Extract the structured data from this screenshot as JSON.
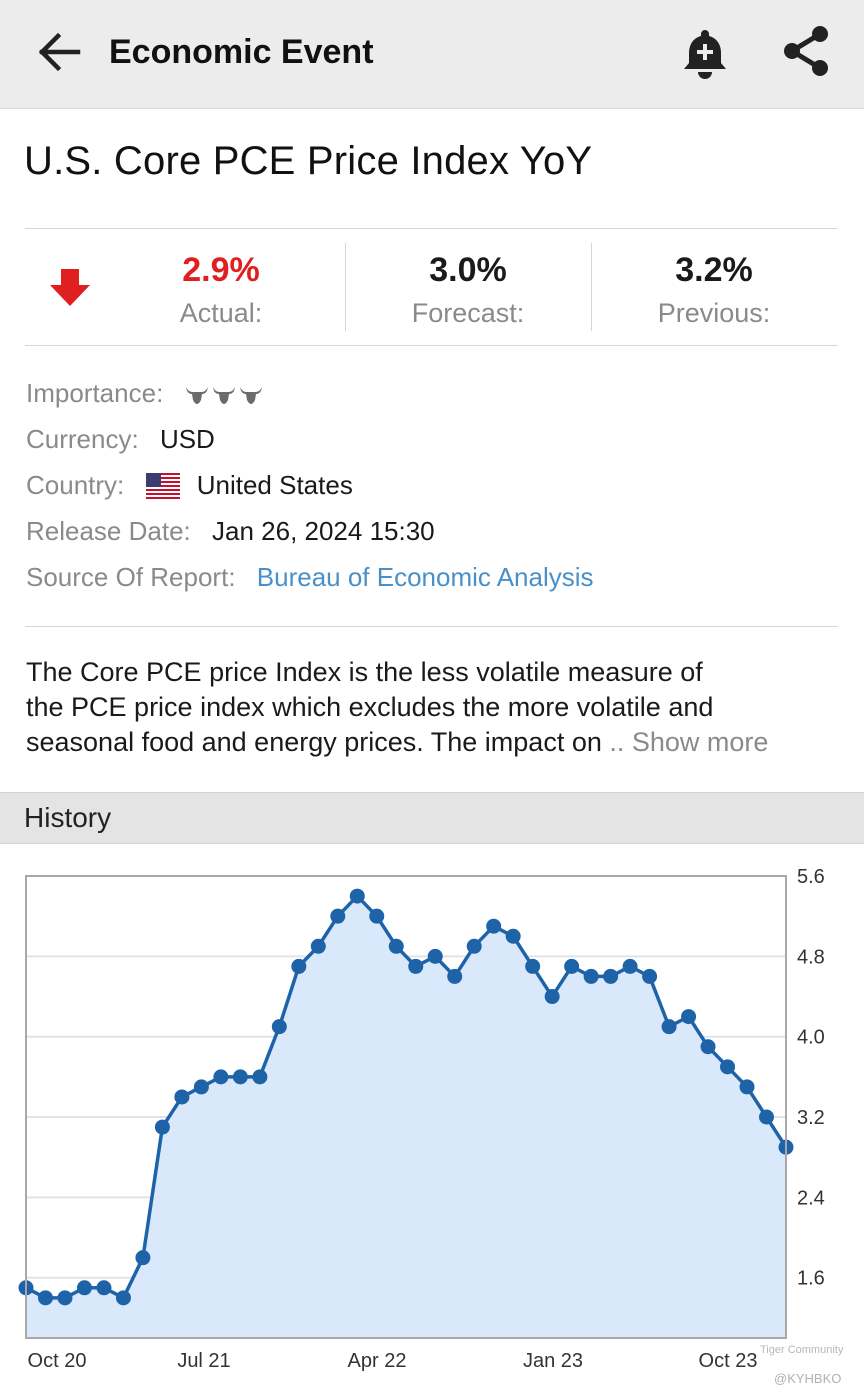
{
  "appbar": {
    "title": "Economic Event",
    "icons": [
      "back-arrow-icon",
      "bell-add-icon",
      "share-icon"
    ]
  },
  "event": {
    "title": "U.S. Core PCE Price Index YoY",
    "actual": {
      "value": "2.9%",
      "label": "Actual:",
      "color": "#e02020"
    },
    "forecast": {
      "value": "3.0%",
      "label": "Forecast:"
    },
    "previous": {
      "value": "3.2%",
      "label": "Previous:"
    }
  },
  "info": {
    "importance_label": "Importance:",
    "importance_level": 3,
    "currency_label": "Currency:",
    "currency": "USD",
    "country_label": "Country:",
    "country": "United States",
    "release_label": "Release Date:",
    "release_date": "Jan 26, 2024 15:30",
    "source_label": "Source Of Report:",
    "source": "Bureau of Economic Analysis"
  },
  "description": {
    "line1": "The Core PCE price Index is the less volatile measure of",
    "line2": "the PCE price index which excludes the more volatile and",
    "line3": "seasonal food and energy prices. The impact on",
    "show_more": ".. Show more"
  },
  "history": {
    "label": "History"
  },
  "watermark": {
    "brand": "Tiger Community",
    "handle": "@KYHBKO"
  },
  "chart_data": {
    "type": "area",
    "x_ticks": [
      "Oct 20",
      "Jul 21",
      "Apr 22",
      "Jan 23",
      "Oct 23"
    ],
    "y_ticks": [
      "5.6",
      "4.8",
      "4.0",
      "3.2",
      "2.4",
      "1.6"
    ],
    "ylim": [
      1.0,
      5.6
    ],
    "values": [
      1.5,
      1.4,
      1.4,
      1.5,
      1.5,
      1.4,
      1.8,
      3.1,
      3.4,
      3.5,
      3.6,
      3.6,
      3.6,
      4.1,
      4.7,
      4.9,
      5.2,
      5.4,
      5.2,
      4.9,
      4.7,
      4.8,
      4.6,
      4.9,
      5.1,
      5.0,
      4.7,
      4.4,
      4.7,
      4.6,
      4.6,
      4.7,
      4.6,
      4.1,
      4.2,
      3.9,
      3.7,
      3.5,
      3.2,
      2.9
    ],
    "line_color": "#1e63a8",
    "fill_color": "#d9e8fb"
  }
}
